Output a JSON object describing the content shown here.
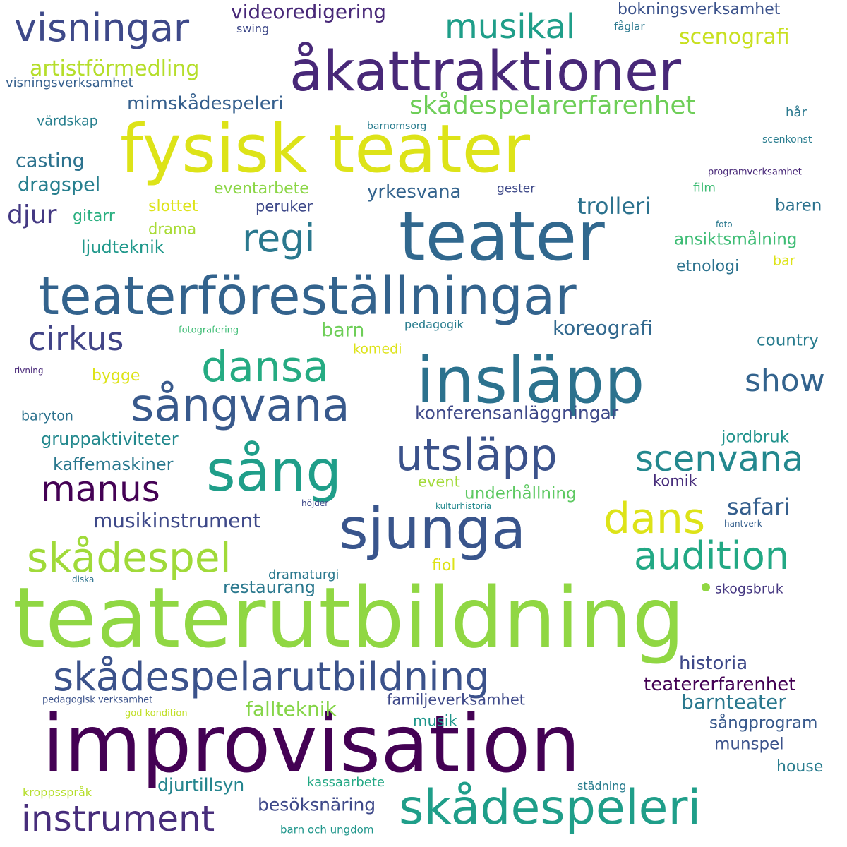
{
  "palette": {
    "dark_purple": "#440154",
    "purple": "#482878",
    "indigo": "#3e4989",
    "blue": "#31688e",
    "teal": "#26828e",
    "green_teal": "#1f9e89",
    "green": "#35b779",
    "light_green": "#6ece58",
    "lime": "#b5de2b",
    "yellow": "#dde318"
  },
  "words": [
    {
      "text": "teaterutbildning",
      "weight": 1.0,
      "color": "#90d743"
    },
    {
      "text": "improvisation",
      "weight": 0.98,
      "color": "#440154"
    },
    {
      "text": "fysisk teater",
      "weight": 0.8,
      "color": "#dde318"
    },
    {
      "text": "teater",
      "weight": 0.82,
      "color": "#31688e"
    },
    {
      "text": "åkattraktioner",
      "weight": 0.72,
      "color": "#482878"
    },
    {
      "text": "insläpp",
      "weight": 0.8,
      "color": "#2c728e"
    },
    {
      "text": "teaterföreställningar",
      "weight": 0.63,
      "color": "#33638d"
    },
    {
      "text": "sjunga",
      "weight": 0.7,
      "color": "#39558c"
    },
    {
      "text": "sång",
      "weight": 0.66,
      "color": "#1f9e89"
    },
    {
      "text": "sångvana",
      "weight": 0.55,
      "color": "#38598c"
    },
    {
      "text": "skådespeleri",
      "weight": 0.58,
      "color": "#1f9e89"
    },
    {
      "text": "skådespelarutbildning",
      "weight": 0.46,
      "color": "#3b528b"
    },
    {
      "text": "utsläpp",
      "weight": 0.52,
      "color": "#3b528b"
    },
    {
      "text": "skådespel",
      "weight": 0.5,
      "color": "#a0da39"
    },
    {
      "text": "dansa",
      "weight": 0.52,
      "color": "#25ab82"
    },
    {
      "text": "visningar",
      "weight": 0.45,
      "color": "#3e4989"
    },
    {
      "text": "dans",
      "weight": 0.52,
      "color": "#dde318"
    },
    {
      "text": "audition",
      "weight": 0.46,
      "color": "#22a884"
    },
    {
      "text": "instrument",
      "weight": 0.42,
      "color": "#472d7b"
    },
    {
      "text": "regi",
      "weight": 0.46,
      "color": "#2a788e"
    },
    {
      "text": "scenvana",
      "weight": 0.42,
      "color": "#23888e"
    },
    {
      "text": "manus",
      "weight": 0.42,
      "color": "#440154"
    },
    {
      "text": "musikal",
      "weight": 0.4,
      "color": "#1f9e89"
    },
    {
      "text": "cirkus",
      "weight": 0.39,
      "color": "#414487"
    },
    {
      "text": "show",
      "weight": 0.36,
      "color": "#33638d"
    },
    {
      "text": "skådespelarerfarenhet",
      "weight": 0.3,
      "color": "#6ece58"
    },
    {
      "text": "safari",
      "weight": 0.27,
      "color": "#355f8d"
    },
    {
      "text": "trolleri",
      "weight": 0.27,
      "color": "#2c728e"
    },
    {
      "text": "djur",
      "weight": 0.3,
      "color": "#443983"
    },
    {
      "text": "scenografi",
      "weight": 0.25,
      "color": "#c8e020"
    },
    {
      "text": "artistförmedling",
      "weight": 0.25,
      "color": "#b5de2b"
    },
    {
      "text": "fallteknik",
      "weight": 0.23,
      "color": "#86d549"
    },
    {
      "text": "barnteater",
      "weight": 0.23,
      "color": "#2a788e"
    },
    {
      "text": "koreografi",
      "weight": 0.23,
      "color": "#31688e"
    },
    {
      "text": "musikinstrument",
      "weight": 0.23,
      "color": "#3e4989"
    },
    {
      "text": "videoredigering",
      "weight": 0.23,
      "color": "#482878"
    },
    {
      "text": "casting",
      "weight": 0.22,
      "color": "#2c728e"
    },
    {
      "text": "dragspel",
      "weight": 0.22,
      "color": "#277f8e"
    },
    {
      "text": "teatererfarenhet",
      "weight": 0.21,
      "color": "#440154"
    },
    {
      "text": "historia",
      "weight": 0.21,
      "color": "#3e4989"
    },
    {
      "text": "barn",
      "weight": 0.22,
      "color": "#6ece58"
    },
    {
      "text": "yrkesvana",
      "weight": 0.21,
      "color": "#33638d"
    },
    {
      "text": "mimskådespeleri",
      "weight": 0.21,
      "color": "#355f8d"
    },
    {
      "text": "besöksnäring",
      "weight": 0.21,
      "color": "#3e4989"
    },
    {
      "text": "konferensanläggningar",
      "weight": 0.21,
      "color": "#3e4989"
    },
    {
      "text": "djurtillsyn",
      "weight": 0.21,
      "color": "#25858e"
    },
    {
      "text": "restaurang",
      "weight": 0.2,
      "color": "#2a788e"
    },
    {
      "text": "ljudteknik",
      "weight": 0.2,
      "color": "#1f988b"
    },
    {
      "text": "gruppaktiviteter",
      "weight": 0.19,
      "color": "#23898e"
    },
    {
      "text": "kaffemaskiner",
      "weight": 0.19,
      "color": "#2a788e"
    },
    {
      "text": "underhållning",
      "weight": 0.19,
      "color": "#5ec962"
    },
    {
      "text": "ansiktsmålning",
      "weight": 0.19,
      "color": "#3dbc74"
    },
    {
      "text": "sångprogram",
      "weight": 0.19,
      "color": "#38598c"
    },
    {
      "text": "munspel",
      "weight": 0.19,
      "color": "#3b528b"
    },
    {
      "text": "familjeverksamhet",
      "weight": 0.17,
      "color": "#3e4989"
    },
    {
      "text": "baren",
      "weight": 0.19,
      "color": "#2c728e"
    },
    {
      "text": "country",
      "weight": 0.19,
      "color": "#287c8e"
    },
    {
      "text": "jordbruk",
      "weight": 0.19,
      "color": "#20928c"
    },
    {
      "text": "bokningsverksamhet",
      "weight": 0.18,
      "color": "#3b528b"
    },
    {
      "text": "gitarr",
      "weight": 0.18,
      "color": "#29af7f"
    },
    {
      "text": "etnologi",
      "weight": 0.18,
      "color": "#2c728e"
    },
    {
      "text": "eventarbete",
      "weight": 0.18,
      "color": "#8bd646"
    },
    {
      "text": "slottet",
      "weight": 0.18,
      "color": "#dde318"
    },
    {
      "text": "bygge",
      "weight": 0.18,
      "color": "#dde318"
    },
    {
      "text": "peruker",
      "weight": 0.17,
      "color": "#3e4989"
    },
    {
      "text": "musik",
      "weight": 0.17,
      "color": "#1f968b"
    },
    {
      "text": "house",
      "weight": 0.18,
      "color": "#287c8e"
    },
    {
      "text": "fiol",
      "weight": 0.18,
      "color": "#dde318"
    },
    {
      "text": "drama",
      "weight": 0.17,
      "color": "#a8db34"
    },
    {
      "text": "event",
      "weight": 0.17,
      "color": "#a2da37"
    },
    {
      "text": "komik",
      "weight": 0.17,
      "color": "#472d7b"
    },
    {
      "text": "skogsbruk",
      "weight": 0.16,
      "color": "#453781"
    },
    {
      "text": "baryton",
      "weight": 0.15,
      "color": "#2c728e"
    },
    {
      "text": "värdskap",
      "weight": 0.15,
      "color": "#277f8e"
    },
    {
      "text": "komedi",
      "weight": 0.15,
      "color": "#dde318"
    },
    {
      "text": "bar",
      "weight": 0.15,
      "color": "#dde318"
    },
    {
      "text": "visningsverksamhet",
      "weight": 0.14,
      "color": "#355f8d"
    },
    {
      "text": "kassaarbete",
      "weight": 0.14,
      "color": "#22a884"
    },
    {
      "text": "dramaturgi",
      "weight": 0.14,
      "color": "#2a788e"
    },
    {
      "text": "hår",
      "weight": 0.14,
      "color": "#2a788e"
    },
    {
      "text": "gester",
      "weight": 0.13,
      "color": "#3e4989"
    },
    {
      "text": "film",
      "weight": 0.13,
      "color": "#3dbc74"
    },
    {
      "text": "pedagogik",
      "weight": 0.13,
      "color": "#287c8e"
    },
    {
      "text": "städning",
      "weight": 0.13,
      "color": "#287c8e"
    },
    {
      "text": "kroppsspråk",
      "weight": 0.13,
      "color": "#b5de2b"
    },
    {
      "text": "barn och ungdom",
      "weight": 0.12,
      "color": "#1f968b"
    },
    {
      "text": "swing",
      "weight": 0.12,
      "color": "#3e4989"
    },
    {
      "text": "fåglar",
      "weight": 0.12,
      "color": "#2a788e"
    },
    {
      "text": "barnomsorg",
      "weight": 0.11,
      "color": "#287c8e"
    },
    {
      "text": "scenkonst",
      "weight": 0.11,
      "color": "#287c8e"
    },
    {
      "text": "programverksamhet",
      "weight": 0.11,
      "color": "#482878"
    },
    {
      "text": "fotografering",
      "weight": 0.11,
      "color": "#3dbc74"
    },
    {
      "text": "pedagogisk verksamhet",
      "weight": 0.11,
      "color": "#3b528b"
    },
    {
      "text": "god kondition",
      "weight": 0.11,
      "color": "#c0df25"
    },
    {
      "text": "kulturhistoria",
      "weight": 0.1,
      "color": "#23898e"
    },
    {
      "text": "höjder",
      "weight": 0.1,
      "color": "#3e4989"
    },
    {
      "text": "hantverk",
      "weight": 0.1,
      "color": "#355f8d"
    },
    {
      "text": "rivning",
      "weight": 0.1,
      "color": "#482878"
    },
    {
      "text": "foto",
      "weight": 0.1,
      "color": "#2a788e"
    },
    {
      "text": "diska",
      "weight": 0.1,
      "color": "#2c728e"
    }
  ]
}
